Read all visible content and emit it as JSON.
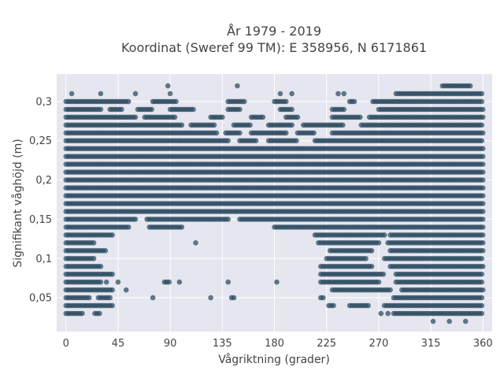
{
  "chart_data": {
    "type": "scatter",
    "title_line1": "År 1979 - 2019",
    "title_line2": "Koordinat (Sweref 99 TM): E 358956, N 6171861",
    "xlabel": "Vågriktning (grader)",
    "ylabel": "Signifikant våghöjd (m)",
    "xlim": [
      -8,
      368
    ],
    "ylim": [
      0.007,
      0.335
    ],
    "x_ticks": [
      0,
      45,
      90,
      135,
      180,
      225,
      270,
      315,
      360
    ],
    "x_tick_labels": [
      "0",
      "45",
      "90",
      "135",
      "180",
      "225",
      "270",
      "315",
      "360"
    ],
    "y_ticks": [
      0.05,
      0.1,
      0.15,
      0.2,
      0.25,
      0.3
    ],
    "y_tick_labels": [
      "0,05",
      "0,1",
      "0,15",
      "0,2",
      "0,25",
      "0,3"
    ],
    "grid": true,
    "legend": "none",
    "marker_color": "#2a4a5e",
    "background_color": "#e5e6ef",
    "bands": [
      {
        "y": 0.02,
        "ranges": [
          [
            317,
            317
          ],
          [
            331,
            331
          ],
          [
            345,
            345
          ]
        ]
      },
      {
        "y": 0.03,
        "ranges": [
          [
            0,
            15
          ],
          [
            25,
            30
          ],
          [
            272,
            272
          ],
          [
            278,
            278
          ],
          [
            283,
            360
          ]
        ]
      },
      {
        "y": 0.04,
        "ranges": [
          [
            0,
            40
          ],
          [
            227,
            232
          ],
          [
            245,
            262
          ],
          [
            275,
            360
          ]
        ]
      },
      {
        "y": 0.05,
        "ranges": [
          [
            0,
            20
          ],
          [
            28,
            38
          ],
          [
            75,
            75
          ],
          [
            125,
            125
          ],
          [
            143,
            145
          ],
          [
            220,
            222
          ],
          [
            283,
            360
          ]
        ]
      },
      {
        "y": 0.06,
        "ranges": [
          [
            0,
            40
          ],
          [
            52,
            52
          ],
          [
            230,
            280
          ],
          [
            290,
            360
          ]
        ]
      },
      {
        "y": 0.07,
        "ranges": [
          [
            0,
            30
          ],
          [
            35,
            35
          ],
          [
            45,
            45
          ],
          [
            85,
            90
          ],
          [
            98,
            98
          ],
          [
            140,
            140
          ],
          [
            182,
            182
          ],
          [
            220,
            270
          ],
          [
            285,
            360
          ]
        ]
      },
      {
        "y": 0.08,
        "ranges": [
          [
            0,
            40
          ],
          [
            220,
            275
          ],
          [
            285,
            360
          ]
        ]
      },
      {
        "y": 0.09,
        "ranges": [
          [
            0,
            30
          ],
          [
            220,
            265
          ],
          [
            280,
            360
          ]
        ]
      },
      {
        "y": 0.1,
        "ranges": [
          [
            0,
            25
          ],
          [
            225,
            260
          ],
          [
            275,
            360
          ]
        ]
      },
      {
        "y": 0.11,
        "ranges": [
          [
            0,
            35
          ],
          [
            228,
            265
          ],
          [
            280,
            360
          ]
        ]
      },
      {
        "y": 0.12,
        "ranges": [
          [
            0,
            25
          ],
          [
            112,
            112
          ],
          [
            218,
            270
          ],
          [
            278,
            360
          ]
        ]
      },
      {
        "y": 0.13,
        "ranges": [
          [
            0,
            40
          ],
          [
            215,
            275
          ],
          [
            280,
            360
          ]
        ]
      },
      {
        "y": 0.14,
        "ranges": [
          [
            0,
            55
          ],
          [
            72,
            100
          ],
          [
            180,
            360
          ]
        ]
      },
      {
        "y": 0.15,
        "ranges": [
          [
            0,
            60
          ],
          [
            70,
            140
          ],
          [
            150,
            360
          ]
        ]
      },
      {
        "y": 0.16,
        "ranges": [
          [
            0,
            360
          ]
        ]
      },
      {
        "y": 0.17,
        "ranges": [
          [
            0,
            360
          ]
        ]
      },
      {
        "y": 0.18,
        "ranges": [
          [
            0,
            360
          ]
        ]
      },
      {
        "y": 0.19,
        "ranges": [
          [
            0,
            360
          ]
        ]
      },
      {
        "y": 0.2,
        "ranges": [
          [
            0,
            360
          ]
        ]
      },
      {
        "y": 0.21,
        "ranges": [
          [
            0,
            360
          ]
        ]
      },
      {
        "y": 0.22,
        "ranges": [
          [
            0,
            360
          ]
        ]
      },
      {
        "y": 0.23,
        "ranges": [
          [
            0,
            360
          ]
        ]
      },
      {
        "y": 0.24,
        "ranges": [
          [
            0,
            360
          ]
        ]
      },
      {
        "y": 0.25,
        "ranges": [
          [
            0,
            140
          ],
          [
            150,
            165
          ],
          [
            175,
            200
          ],
          [
            215,
            360
          ]
        ]
      },
      {
        "y": 0.26,
        "ranges": [
          [
            0,
            130
          ],
          [
            138,
            150
          ],
          [
            160,
            190
          ],
          [
            200,
            215
          ],
          [
            230,
            360
          ]
        ]
      },
      {
        "y": 0.27,
        "ranges": [
          [
            0,
            100
          ],
          [
            108,
            128
          ],
          [
            145,
            160
          ],
          [
            175,
            195
          ],
          [
            205,
            240
          ],
          [
            255,
            360
          ]
        ]
      },
      {
        "y": 0.28,
        "ranges": [
          [
            0,
            60
          ],
          [
            68,
            95
          ],
          [
            125,
            135
          ],
          [
            160,
            170
          ],
          [
            190,
            200
          ],
          [
            230,
            255
          ],
          [
            262,
            360
          ]
        ]
      },
      {
        "y": 0.29,
        "ranges": [
          [
            0,
            30
          ],
          [
            38,
            48
          ],
          [
            62,
            75
          ],
          [
            90,
            110
          ],
          [
            140,
            150
          ],
          [
            185,
            195
          ],
          [
            230,
            240
          ],
          [
            270,
            360
          ]
        ]
      },
      {
        "y": 0.3,
        "ranges": [
          [
            0,
            55
          ],
          [
            75,
            95
          ],
          [
            140,
            155
          ],
          [
            180,
            190
          ],
          [
            245,
            250
          ],
          [
            265,
            360
          ]
        ]
      },
      {
        "y": 0.31,
        "ranges": [
          [
            5,
            5
          ],
          [
            30,
            30
          ],
          [
            60,
            60
          ],
          [
            90,
            90
          ],
          [
            185,
            185
          ],
          [
            195,
            195
          ],
          [
            235,
            235
          ],
          [
            240,
            240
          ],
          [
            285,
            360
          ]
        ]
      },
      {
        "y": 0.32,
        "ranges": [
          [
            88,
            88
          ],
          [
            148,
            148
          ],
          [
            325,
            350
          ]
        ]
      }
    ]
  }
}
